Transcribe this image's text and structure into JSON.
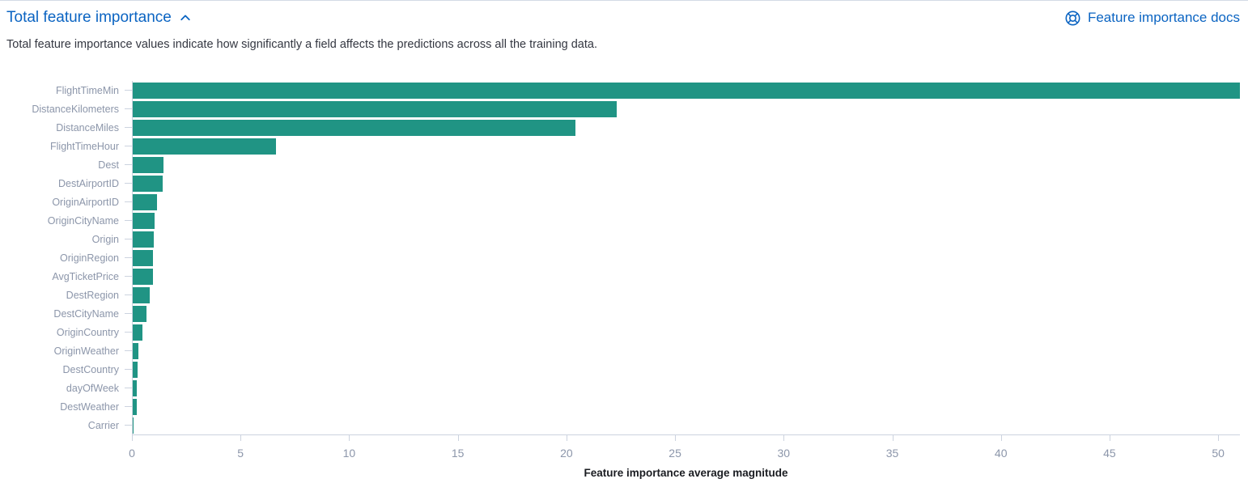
{
  "header": {
    "title": "Total feature importance",
    "docs_link_label": "Feature importance docs"
  },
  "description": "Total feature importance values indicate how significantly a field affects the predictions across all the training data.",
  "colors": {
    "accent": "#0b64c2",
    "bar": "#209484",
    "axis_label": "#8c96aa",
    "axis_line": "#ccd3df",
    "body_text": "#343741",
    "axis_title_text": "#1a1c21"
  },
  "icons": {
    "collapse": "chevron-up-icon",
    "docs": "help-lifebuoy-icon"
  },
  "chart_data": {
    "type": "bar",
    "orientation": "horizontal",
    "title": "Total feature importance",
    "xlabel": "Feature importance average magnitude",
    "ylabel": "",
    "xlim": [
      0,
      51
    ],
    "x_ticks": [
      0,
      5,
      10,
      15,
      20,
      25,
      30,
      35,
      40,
      45,
      50
    ],
    "grid": false,
    "legend": "none",
    "categories": [
      "FlightTimeMin",
      "DistanceKilometers",
      "DistanceMiles",
      "FlightTimeHour",
      "Dest",
      "DestAirportID",
      "OriginAirportID",
      "OriginCityName",
      "Origin",
      "OriginRegion",
      "AvgTicketPrice",
      "DestRegion",
      "DestCityName",
      "OriginCountry",
      "OriginWeather",
      "DestCountry",
      "dayOfWeek",
      "DestWeather",
      "Carrier"
    ],
    "values": [
      51.0,
      22.3,
      20.4,
      6.6,
      1.4,
      1.38,
      1.1,
      1.02,
      0.98,
      0.94,
      0.92,
      0.77,
      0.65,
      0.46,
      0.25,
      0.22,
      0.2,
      0.17,
      0.05
    ]
  }
}
